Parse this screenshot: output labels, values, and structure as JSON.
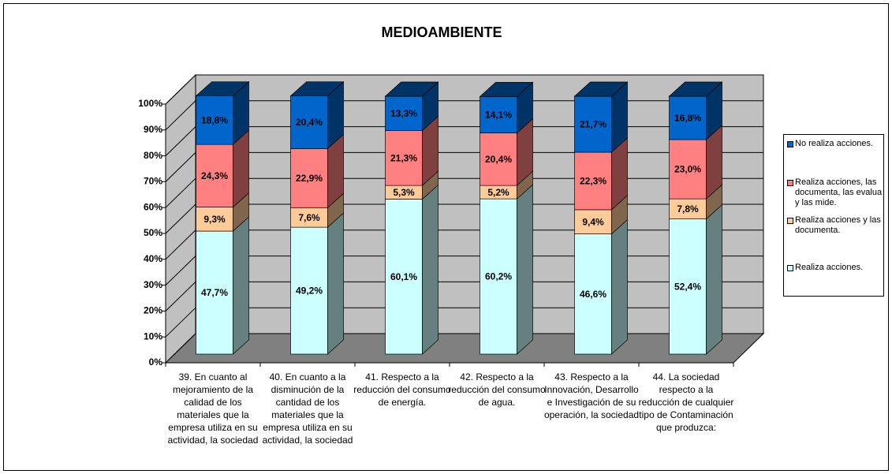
{
  "chart_data": {
    "type": "bar3d_stacked",
    "title": "MEDIOAMBIENTE",
    "categories": [
      "39. En cuanto al mejoramiento de la calidad de los materiales que la empresa utiliza en su actividad, la sociedad",
      "40. En cuanto a la disminución de la cantidad de los materiales que la empresa utiliza en su actividad, la sociedad",
      "41. Respecto a la reducción del consumo de energía.",
      "42. Respecto a la reducción del consumo de agua.",
      "43. Respecto a la Innovación, Desarrollo e Investigación de su operación, la sociedad",
      "44. La sociedad respecto a la reducción de cualquier tipo de Contaminación que produzca:"
    ],
    "series": [
      {
        "name": "Realiza acciones.",
        "color": "#CCFFFF",
        "values": [
          47.7,
          49.2,
          60.1,
          60.2,
          46.6,
          52.4
        ],
        "value_labels": [
          "47,7%",
          "49,2%",
          "60,1%",
          "60,2%",
          "46,6%",
          "52,4%"
        ]
      },
      {
        "name": "Realiza acciones y las documenta.",
        "color": "#FFCC99",
        "values": [
          9.3,
          7.6,
          5.3,
          5.2,
          9.4,
          7.8
        ],
        "value_labels": [
          "9,3%",
          "7,6%",
          "5,3%",
          "5,2%",
          "9,4%",
          "7,8%"
        ]
      },
      {
        "name": "Realiza acciones, las documenta, las evalua y las mide.",
        "color": "#FF8080",
        "values": [
          24.3,
          22.9,
          21.3,
          20.4,
          22.3,
          23.0
        ],
        "value_labels": [
          "24,3%",
          "22,9%",
          "21,3%",
          "20,4%",
          "22,3%",
          "23,0%"
        ]
      },
      {
        "name": "No realiza acciones.",
        "color": "#0066CC",
        "values": [
          18.8,
          20.4,
          13.3,
          14.1,
          21.7,
          16.8
        ],
        "value_labels": [
          "18,8%",
          "20,4%",
          "13,3%",
          "14,1%",
          "21,7%",
          "16,8%"
        ]
      }
    ],
    "ylim": [
      0,
      100
    ],
    "yticks": [
      {
        "value": 0,
        "label": "0%"
      },
      {
        "value": 10,
        "label": "10%"
      },
      {
        "value": 20,
        "label": "20%"
      },
      {
        "value": 30,
        "label": "30%"
      },
      {
        "value": 40,
        "label": "40%"
      },
      {
        "value": 50,
        "label": "50%"
      },
      {
        "value": 60,
        "label": "60%"
      },
      {
        "value": 70,
        "label": "70%"
      },
      {
        "value": 80,
        "label": "80%"
      },
      {
        "value": 90,
        "label": "90%"
      },
      {
        "value": 100,
        "label": "100%"
      }
    ],
    "grid": true,
    "legend": "right"
  }
}
